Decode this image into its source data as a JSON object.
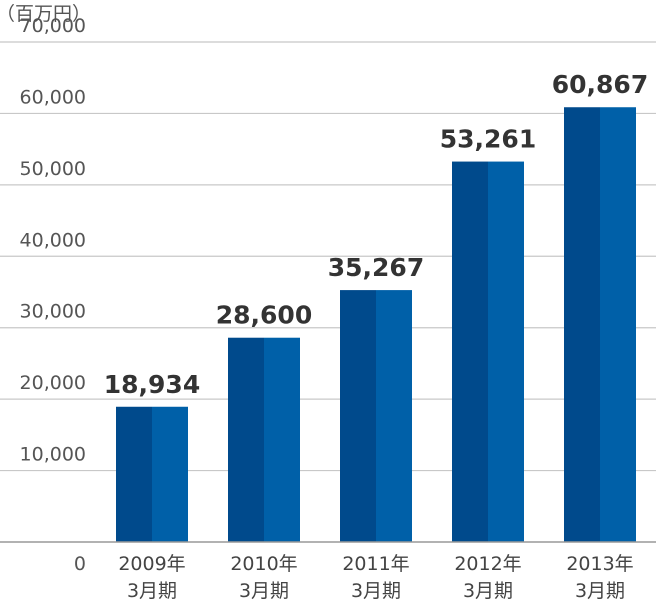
{
  "chart_data": {
    "type": "bar",
    "unit_label": "（百万円）",
    "categories": [
      [
        "2009年",
        "3月期"
      ],
      [
        "2010年",
        "3月期"
      ],
      [
        "2011年",
        "3月期"
      ],
      [
        "2012年",
        "3月期"
      ],
      [
        "2013年",
        "3月期"
      ]
    ],
    "values": [
      18934,
      28600,
      35267,
      53261,
      60867
    ],
    "data_labels": [
      "18,934",
      "28,600",
      "35,267",
      "53,261",
      "60,867"
    ],
    "y_ticks": [
      "0",
      "10,000",
      "20,000",
      "30,000",
      "40,000",
      "50,000",
      "60,000",
      "70,000"
    ],
    "ylim": [
      0,
      70000
    ],
    "grid": true,
    "colors": {
      "bar_left": "#004a8c",
      "bar_right": "#0060a8",
      "grid": "#c8c8c8",
      "axis": "#999999"
    }
  }
}
